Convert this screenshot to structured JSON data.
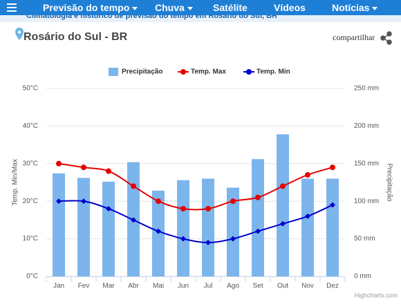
{
  "nav": {
    "items": [
      "Previsão do tempo",
      "Chuva",
      "Satélite",
      "Vídeos",
      "Notícias"
    ]
  },
  "breadcrumb": "Climatologia e histórico de previsão do tempo em Rosário do Sul, BR",
  "location": {
    "title": "Rosário do Sul - BR",
    "share": "compartilhar"
  },
  "credit": "Highcharts.com",
  "chart_data": {
    "type": "combo",
    "categories": [
      "Jan",
      "Fev",
      "Mar",
      "Abr",
      "Mai",
      "Jun",
      "Jul",
      "Ago",
      "Set",
      "Out",
      "Nov",
      "Dez"
    ],
    "series": [
      {
        "name": "Precipitação",
        "type": "bar",
        "axis": "y2",
        "color": "#7cb5ec",
        "values": [
          137,
          131,
          126,
          152,
          114,
          128,
          130,
          118,
          156,
          189,
          130,
          130
        ]
      },
      {
        "name": "Temp. Max",
        "type": "line",
        "axis": "y",
        "color": "#e60000",
        "values": [
          30,
          29,
          28,
          24,
          20,
          18,
          18,
          20,
          21,
          24,
          27,
          29
        ]
      },
      {
        "name": "Temp. Min",
        "type": "line",
        "axis": "y",
        "color": "#0000cc",
        "values": [
          20,
          20,
          18,
          15,
          12,
          10,
          9,
          10,
          12,
          14,
          16,
          19
        ]
      }
    ],
    "ylabel": "Temp. Min/Max",
    "y2label": "Precipitação",
    "ylim": [
      0,
      50
    ],
    "yticks": [
      {
        "value": 0,
        "label": "0°C"
      },
      {
        "value": 10,
        "label": "10°C"
      },
      {
        "value": 20,
        "label": "20°C"
      },
      {
        "value": 30,
        "label": "30°C"
      },
      {
        "value": 40,
        "label": "40°C"
      },
      {
        "value": 50,
        "label": "50°C"
      }
    ],
    "y2lim": [
      0,
      250
    ],
    "y2ticks": [
      {
        "value": 0,
        "label": "0 mm"
      },
      {
        "value": 50,
        "label": "50 mm"
      },
      {
        "value": 100,
        "label": "100 mm"
      },
      {
        "value": 150,
        "label": "150 mm"
      },
      {
        "value": 200,
        "label": "200 mm"
      },
      {
        "value": 250,
        "label": "250 mm"
      }
    ],
    "grid": true,
    "legend": "top"
  }
}
